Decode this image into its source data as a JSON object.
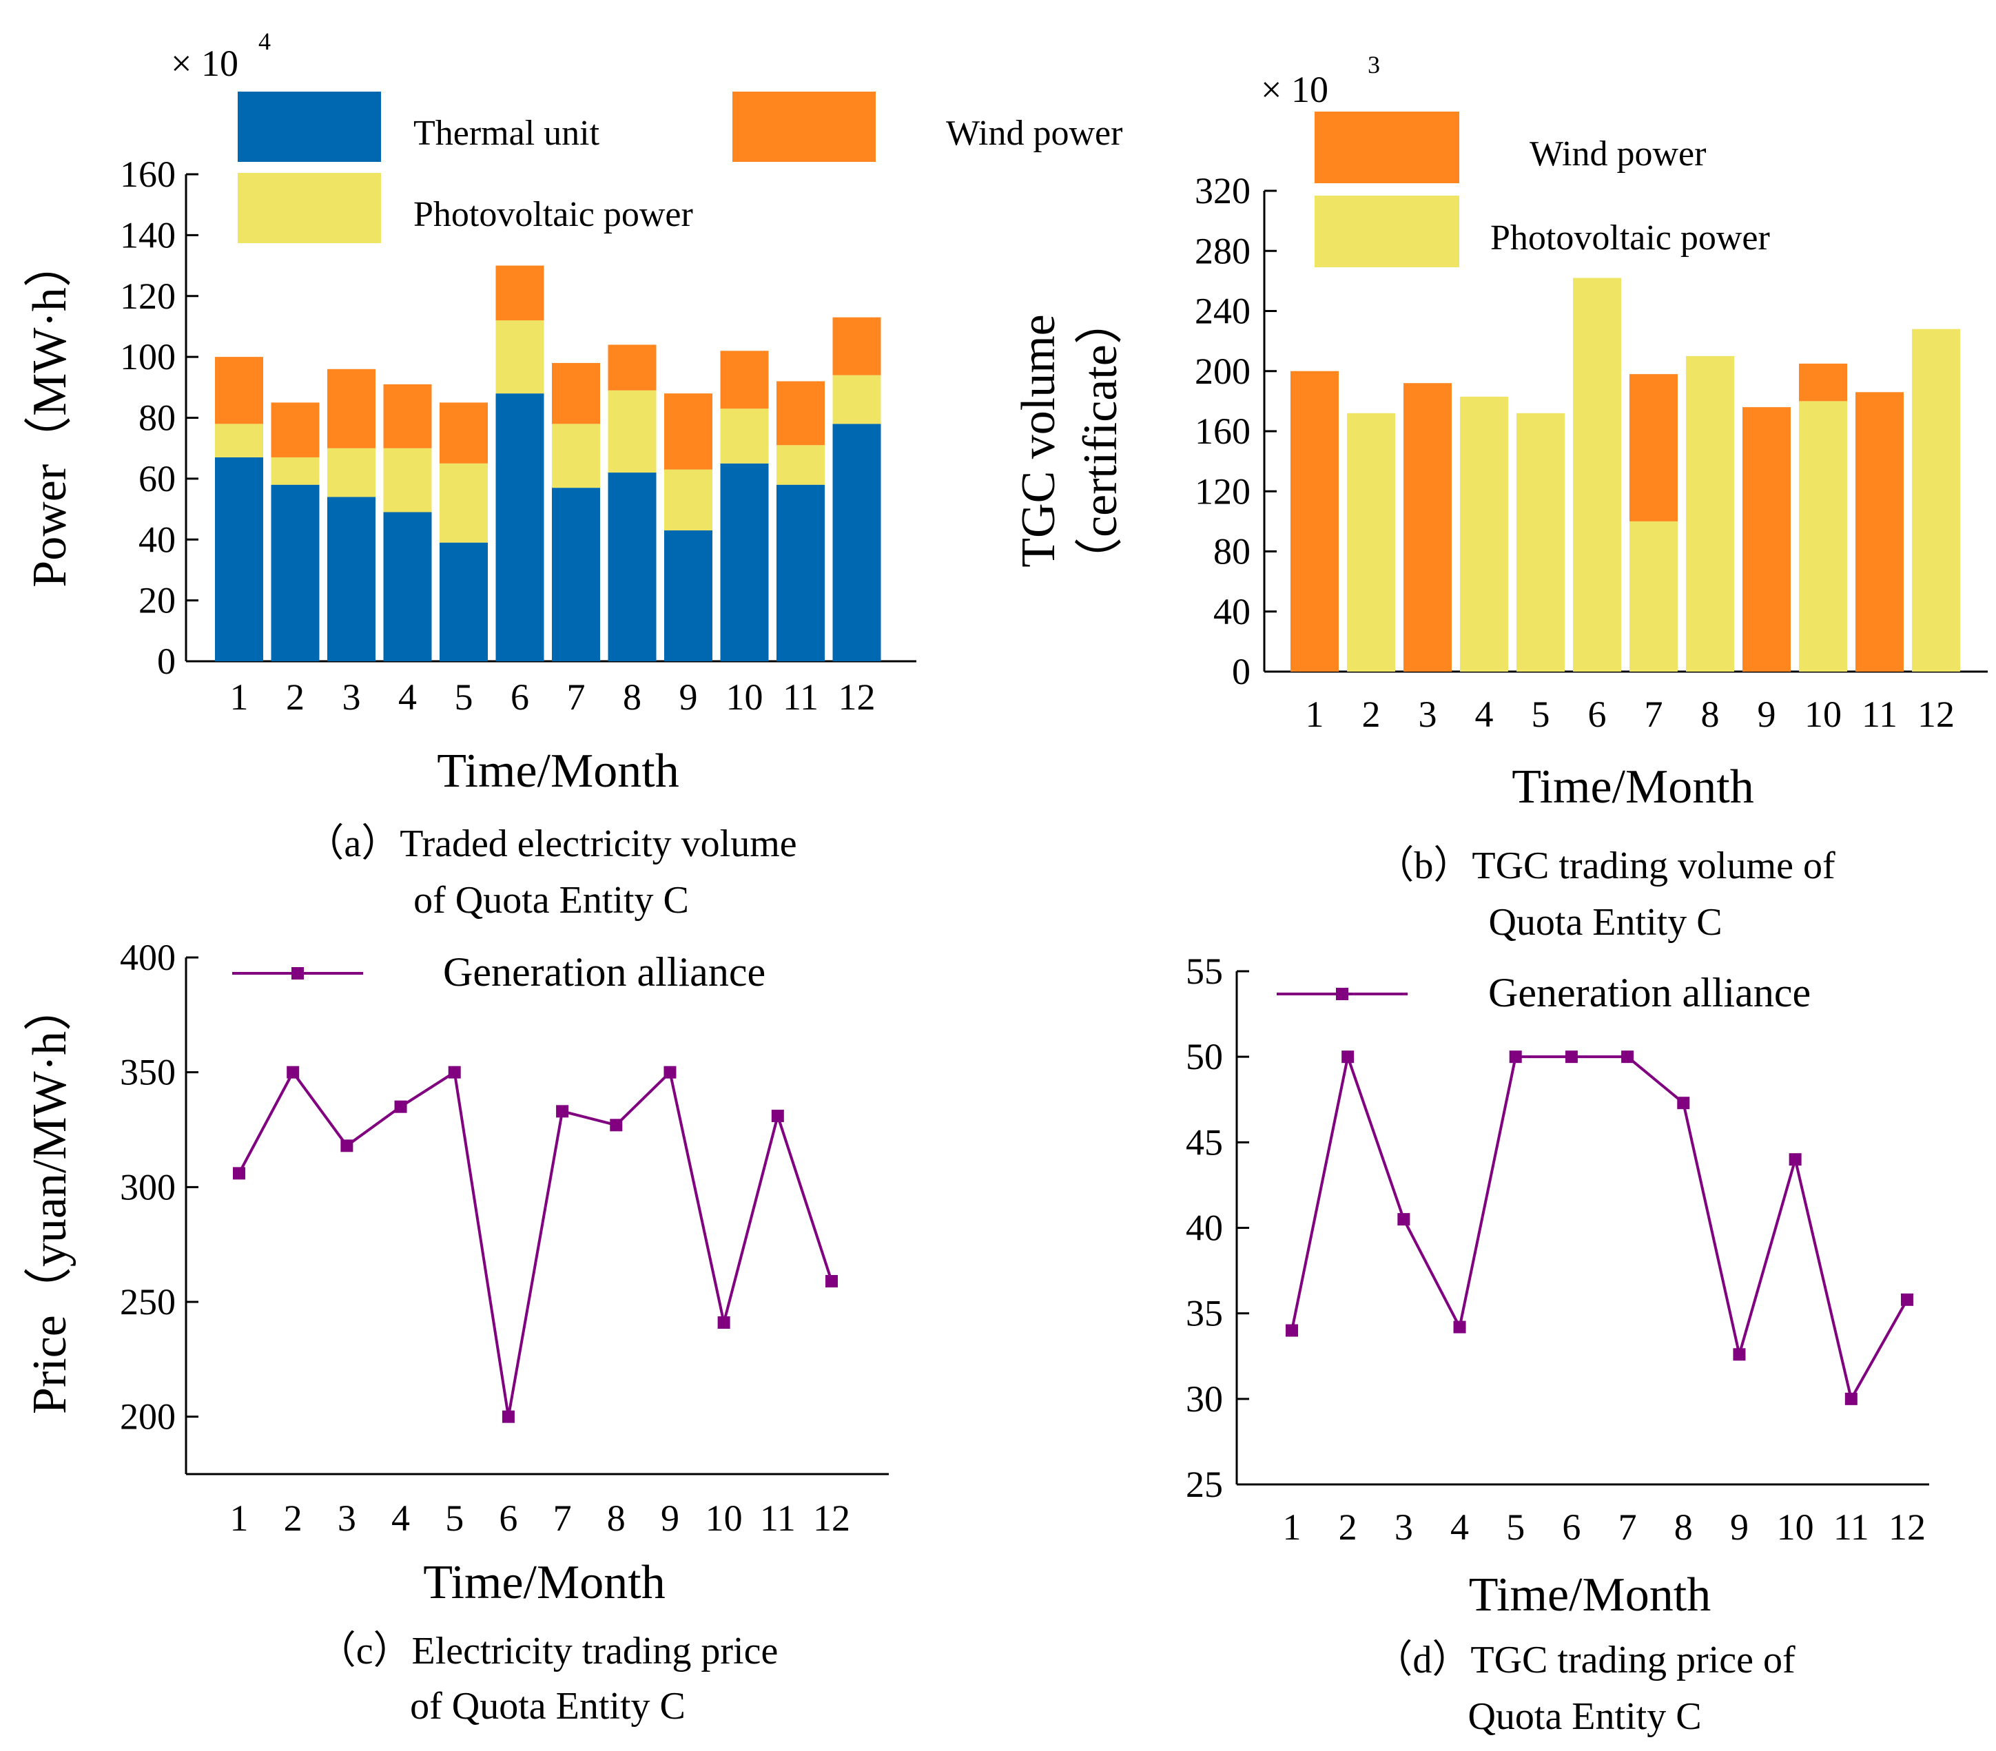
{
  "colors": {
    "thermal": "#0068B0",
    "wind": "#FF861E",
    "pv": "#EFE463",
    "line": "#800080"
  },
  "chart_data": [
    {
      "id": "a",
      "type": "bar",
      "stacked": true,
      "title": "",
      "caption_line1": "（a）Traded electricity volume",
      "caption_line2": "of Quota Entity C",
      "xlabel": "Time/Month",
      "ylabel": "Power（MW·h）",
      "multiplier_base": "× 10",
      "multiplier_exp": "4",
      "categories": [
        "1",
        "2",
        "3",
        "4",
        "5",
        "6",
        "7",
        "8",
        "9",
        "10",
        "11",
        "12"
      ],
      "ylim": [
        0,
        160
      ],
      "yticks": [
        "0",
        "20",
        "40",
        "60",
        "80",
        "100",
        "120",
        "140",
        "160"
      ],
      "series": [
        {
          "name": "Thermal unit",
          "color_key": "thermal",
          "values": [
            67,
            58,
            54,
            49,
            39,
            88,
            57,
            62,
            43,
            65,
            58,
            78
          ]
        },
        {
          "name": "Photovoltaic power",
          "color_key": "pv",
          "values": [
            11,
            9,
            16,
            21,
            26,
            24,
            21,
            27,
            20,
            18,
            13,
            16
          ]
        },
        {
          "name": "Wind power",
          "color_key": "wind",
          "values": [
            22,
            18,
            26,
            21,
            20,
            18,
            20,
            15,
            25,
            19,
            21,
            19
          ]
        }
      ],
      "legend": [
        {
          "label": "Thermal unit",
          "color_key": "thermal"
        },
        {
          "label": "Wind power",
          "color_key": "wind"
        },
        {
          "label": "Photovoltaic power",
          "color_key": "pv"
        }
      ]
    },
    {
      "id": "b",
      "type": "bar",
      "stacked": true,
      "title": "",
      "caption_line1": "（b）TGC trading volume of",
      "caption_line2": "Quota Entity C",
      "xlabel": "Time/Month",
      "ylabel_line1": "TGC volume",
      "ylabel_line2": "（certificate）",
      "multiplier_base": "×  10",
      "multiplier_exp": "3",
      "categories": [
        "1",
        "2",
        "3",
        "4",
        "5",
        "6",
        "7",
        "8",
        "9",
        "10",
        "11",
        "12"
      ],
      "ylim": [
        0,
        320
      ],
      "yticks": [
        "0",
        "40",
        "80",
        "120",
        "160",
        "200",
        "240",
        "280",
        "320"
      ],
      "series": [
        {
          "name": "Photovoltaic power",
          "color_key": "pv",
          "values": [
            0,
            172,
            0,
            183,
            172,
            262,
            100,
            210,
            0,
            180,
            0,
            228
          ]
        },
        {
          "name": "Wind power",
          "color_key": "wind",
          "values": [
            200,
            0,
            192,
            0,
            0,
            0,
            98,
            0,
            176,
            25,
            186,
            0
          ]
        }
      ],
      "legend": [
        {
          "label": "Wind power",
          "color_key": "wind"
        },
        {
          "label": "Photovoltaic power",
          "color_key": "pv"
        }
      ]
    },
    {
      "id": "c",
      "type": "line",
      "title": "",
      "caption_line1": "（c）Electricity trading price",
      "caption_line2": "of Quota Entity C",
      "xlabel": "Time/Month",
      "ylabel": "Price（yuan/MW·h）",
      "categories": [
        "1",
        "2",
        "3",
        "4",
        "5",
        "6",
        "7",
        "8",
        "9",
        "10",
        "11",
        "12"
      ],
      "ylim": [
        175,
        400
      ],
      "yticks": [
        "200",
        "250",
        "300",
        "350",
        "400"
      ],
      "ytick_values": [
        200,
        250,
        300,
        350,
        400
      ],
      "series": [
        {
          "name": "Generation alliance",
          "color_key": "line",
          "values": [
            306,
            350,
            318,
            335,
            350,
            200,
            333,
            327,
            350,
            241,
            331,
            259
          ]
        }
      ],
      "legend": [
        {
          "label": "Generation alliance",
          "color_key": "line"
        }
      ]
    },
    {
      "id": "d",
      "type": "line",
      "title": "",
      "caption_line1": "（d）TGC trading price of",
      "caption_line2": "Quota Entity C",
      "xlabel": "Time/Month",
      "ylabel": "",
      "categories": [
        "1",
        "2",
        "3",
        "4",
        "5",
        "6",
        "7",
        "8",
        "9",
        "10",
        "11",
        "12"
      ],
      "ylim": [
        25,
        55
      ],
      "yticks": [
        "25",
        "30",
        "35",
        "40",
        "45",
        "50",
        "55"
      ],
      "ytick_values": [
        25,
        30,
        35,
        40,
        45,
        50,
        55
      ],
      "series": [
        {
          "name": "Generation alliance",
          "color_key": "line",
          "values": [
            34,
            50,
            40.5,
            34.2,
            50,
            50,
            50,
            47.3,
            32.6,
            44,
            30,
            35.8
          ]
        }
      ],
      "legend": [
        {
          "label": "Generation alliance",
          "color_key": "line"
        }
      ]
    }
  ]
}
